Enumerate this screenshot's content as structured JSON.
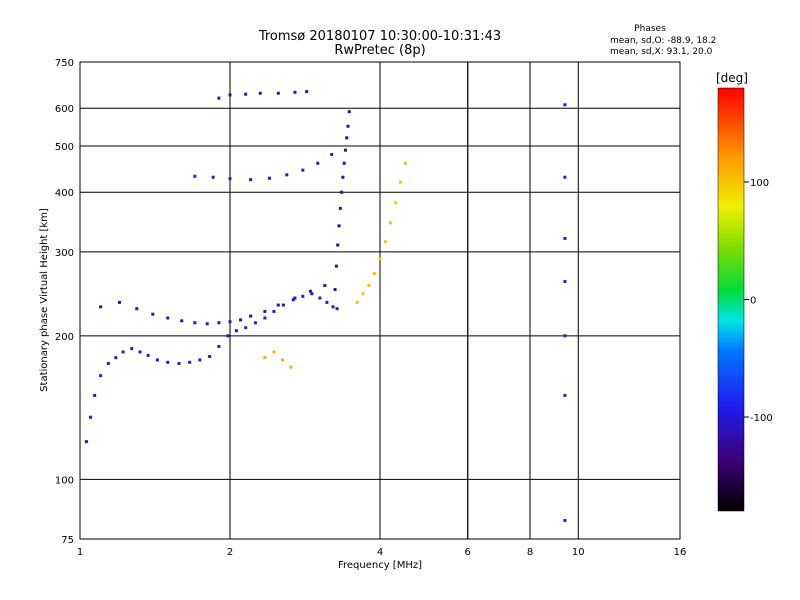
{
  "title": "Tromsø 20180107 10:30:00-10:31:43",
  "subtitle": "RwPretec (8p)",
  "stats": {
    "heading": "Phases",
    "line_o": "mean, sd,O: -88.9, 18.2",
    "line_x": "mean, sd,X:  93.1, 20.0"
  },
  "chart_data": {
    "type": "scatter",
    "xlabel": "Frequency [MHz]",
    "ylabel": "Stationary phase Virtual Height [km]",
    "x_scale": "log",
    "y_scale": "log",
    "xlim": [
      1,
      16
    ],
    "ylim": [
      75,
      750
    ],
    "x_ticks": [
      1,
      2,
      4,
      6,
      8,
      10,
      16
    ],
    "y_ticks": [
      75,
      100,
      200,
      300,
      400,
      500,
      600,
      750
    ],
    "grid": true,
    "colorbar": {
      "label": "[deg]",
      "ticks": [
        100,
        0,
        -100
      ],
      "range": [
        -180,
        180
      ],
      "colormap": "rainbow"
    },
    "series": [
      {
        "x": [
          1.03,
          1.05,
          1.07,
          1.1,
          1.14,
          1.18,
          1.22,
          1.27,
          1.32,
          1.37,
          1.43,
          1.5,
          1.58,
          1.66,
          1.74,
          1.82,
          1.9,
          1.98,
          2.06,
          2.15,
          2.25,
          2.35,
          2.45,
          2.56,
          2.68,
          2.8,
          2.92,
          3.03,
          3.13,
          3.22,
          3.28
        ],
        "y": [
          120,
          135,
          150,
          165,
          175,
          180,
          185,
          188,
          185,
          182,
          178,
          176,
          175,
          176,
          178,
          181,
          190,
          200,
          205,
          208,
          213,
          218,
          225,
          232,
          238,
          242,
          245,
          240,
          235,
          230,
          228
        ],
        "phase": -100
      },
      {
        "x": [
          1.1,
          1.2,
          1.3,
          1.4,
          1.5,
          1.6,
          1.7,
          1.8,
          1.9,
          2.0,
          2.1,
          2.2,
          2.35,
          2.5,
          2.7,
          2.9,
          3.1
        ],
        "y": [
          230,
          235,
          228,
          222,
          218,
          215,
          213,
          212,
          213,
          214,
          216,
          220,
          225,
          232,
          240,
          248,
          255
        ],
        "phase": -110
      },
      {
        "x": [
          3.25,
          3.27,
          3.29,
          3.31,
          3.33,
          3.35,
          3.37,
          3.39,
          3.41,
          3.43,
          3.45,
          3.47
        ],
        "y": [
          250,
          280,
          310,
          340,
          370,
          400,
          430,
          460,
          490,
          520,
          550,
          590
        ],
        "phase": -120
      },
      {
        "x": [
          1.7,
          1.85,
          2.0,
          2.2,
          2.4,
          2.6,
          2.8,
          3.0,
          3.2
        ],
        "y": [
          432,
          430,
          427,
          425,
          428,
          435,
          445,
          460,
          480
        ],
        "phase": -100
      },
      {
        "x": [
          1.9,
          2.0,
          2.15,
          2.3,
          2.5,
          2.7,
          2.85
        ],
        "y": [
          630,
          640,
          642,
          645,
          645,
          648,
          650
        ],
        "phase": -110
      },
      {
        "x": [
          3.6,
          3.7,
          3.8,
          3.9,
          4.0,
          4.1,
          4.2,
          4.3,
          4.4,
          4.5
        ],
        "y": [
          235,
          245,
          255,
          270,
          290,
          315,
          345,
          380,
          420,
          460
        ],
        "phase": 100
      },
      {
        "x": [
          2.35,
          2.45,
          2.55,
          2.65
        ],
        "y": [
          180,
          185,
          178,
          172
        ],
        "phase": 110
      },
      {
        "x": [
          9.4,
          9.4,
          9.4,
          9.4,
          9.4,
          9.4,
          9.4
        ],
        "y": [
          610,
          430,
          320,
          260,
          200,
          150,
          82
        ],
        "phase": -95
      }
    ],
    "reference_lines_mhz": [
      6,
      8
    ]
  }
}
